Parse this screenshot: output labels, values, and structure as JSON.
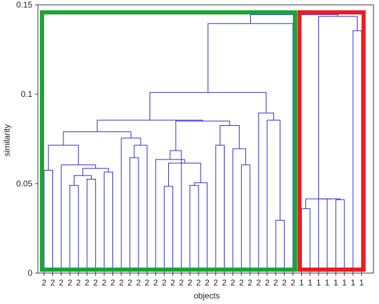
{
  "chart_data": {
    "type": "dendrogram",
    "xlabel": "objects",
    "ylabel": "similarity",
    "ylim": [
      0,
      0.15
    ],
    "yticks": [
      {
        "value": 0,
        "label": "0"
      },
      {
        "value": 0.05,
        "label": "0.05"
      },
      {
        "value": 0.1,
        "label": "0.1"
      },
      {
        "value": 0.15,
        "label": "0.15"
      }
    ],
    "leaf_labels": [
      "2",
      "2",
      "2",
      "2",
      "2",
      "2",
      "2",
      "2",
      "2",
      "2",
      "2",
      "2",
      "2",
      "2",
      "2",
      "2",
      "2",
      "2",
      "2",
      "2",
      "2",
      "2",
      "2",
      "2",
      "2",
      "2",
      "2",
      "2",
      "2",
      "2",
      "1",
      "1",
      "1",
      "1",
      "1",
      "1",
      "1",
      "1"
    ],
    "merges": [
      {
        "id": "A1",
        "a": "L30",
        "b": "L31",
        "height": 0.036
      },
      {
        "id": "A2",
        "a": "L32",
        "b": "L33",
        "height": 0.0415
      },
      {
        "id": "A3",
        "a": "L34",
        "b": "L35",
        "height": 0.041
      },
      {
        "id": "A4",
        "a": "A2",
        "b": "A3",
        "height": 0.0415
      },
      {
        "id": "A5",
        "a": "A1",
        "b": "A4",
        "height": 0.0415
      },
      {
        "id": "A6",
        "a": "L36",
        "b": "L37",
        "height": 0.1355
      },
      {
        "id": "A7",
        "a": "A5",
        "b": "A6",
        "height": 0.1435
      },
      {
        "id": "B1",
        "a": "L0",
        "b": "L1",
        "height": 0.0575
      },
      {
        "id": "B2",
        "a": "L3",
        "b": "L4",
        "height": 0.049
      },
      {
        "id": "B3",
        "a": "L5",
        "b": "L6",
        "height": 0.0525
      },
      {
        "id": "B4",
        "a": "B2",
        "b": "B3",
        "height": 0.0545
      },
      {
        "id": "B5",
        "a": "L7",
        "b": "L8",
        "height": 0.0565
      },
      {
        "id": "B6",
        "a": "B4",
        "b": "B5",
        "height": 0.0585
      },
      {
        "id": "B7",
        "a": "L2",
        "b": "B6",
        "height": 0.0605
      },
      {
        "id": "B8",
        "a": "B1",
        "b": "B7",
        "height": 0.0715
      },
      {
        "id": "B9",
        "a": "L10",
        "b": "L11",
        "height": 0.0645
      },
      {
        "id": "B10",
        "a": "B9",
        "b": "L12",
        "height": 0.0715
      },
      {
        "id": "B11",
        "a": "L9",
        "b": "B10",
        "height": 0.0755
      },
      {
        "id": "B12",
        "a": "B8",
        "b": "B11",
        "height": 0.079
      },
      {
        "id": "B13",
        "a": "L14",
        "b": "L15",
        "height": 0.0485
      },
      {
        "id": "B14",
        "a": "L17",
        "b": "L18",
        "height": 0.049
      },
      {
        "id": "B15",
        "a": "B14",
        "b": "L19",
        "height": 0.0505
      },
      {
        "id": "B16",
        "a": "B13",
        "b": "B15",
        "height": 0.0615
      },
      {
        "id": "B17",
        "a": "L13",
        "b": "B16",
        "height": 0.0635
      },
      {
        "id": "B18",
        "a": "B17",
        "b": "L16",
        "height": 0.0685
      },
      {
        "id": "B19",
        "a": "L23",
        "b": "L24",
        "height": 0.0605
      },
      {
        "id": "B20",
        "a": "L22",
        "b": "B19",
        "height": 0.0695
      },
      {
        "id": "B21",
        "a": "L20",
        "b": "L21",
        "height": 0.0715
      },
      {
        "id": "B22",
        "a": "B21",
        "b": "B20",
        "height": 0.0825
      },
      {
        "id": "B23",
        "a": "B18",
        "b": "B22",
        "height": 0.085
      },
      {
        "id": "B24",
        "a": "B12",
        "b": "B23",
        "height": 0.0855
      },
      {
        "id": "B25",
        "a": "L27",
        "b": "L28",
        "height": 0.0295
      },
      {
        "id": "B26",
        "a": "L26",
        "b": "B25",
        "height": 0.0855
      },
      {
        "id": "B27",
        "a": "L25",
        "b": "B26",
        "height": 0.0895
      },
      {
        "id": "B28",
        "a": "B24",
        "b": "B27",
        "height": 0.101
      },
      {
        "id": "B29",
        "a": "B28",
        "b": "L29",
        "height": 0.1395
      },
      {
        "id": "R",
        "a": "B29",
        "b": "A7",
        "height": 0.1445
      }
    ],
    "cluster_boxes": [
      {
        "from": 0,
        "to": 29,
        "color": "#1aa533"
      },
      {
        "from": 30,
        "to": 37,
        "color": "#ec1c24"
      }
    ],
    "colors": {
      "dendrogram": "#2c2cd2",
      "frame": "#333333"
    }
  }
}
